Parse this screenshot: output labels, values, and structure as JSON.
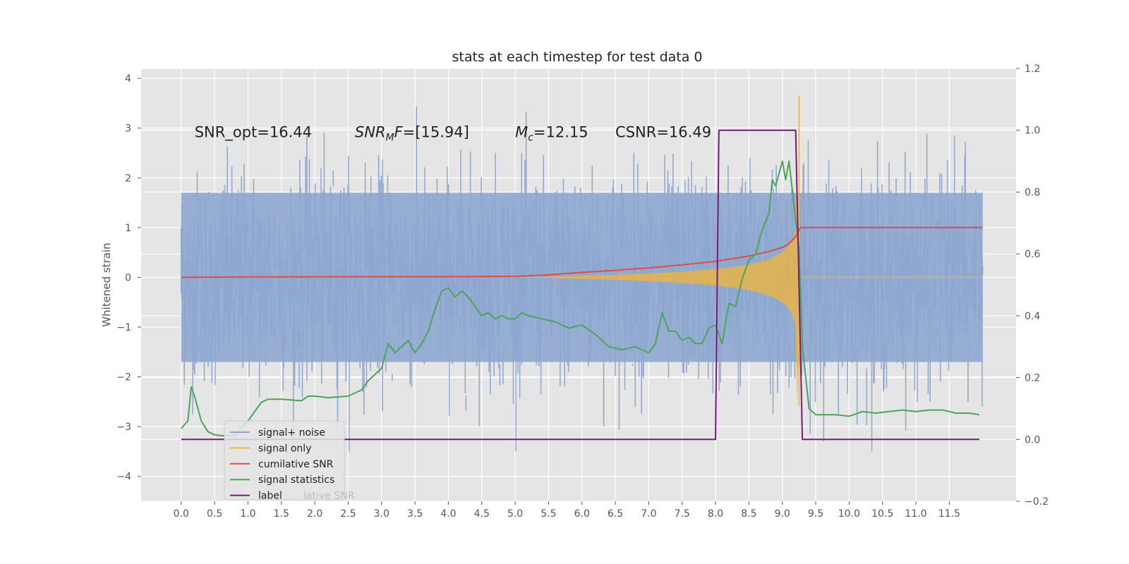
{
  "chart_data": {
    "type": "line",
    "title": "stats at each timestep for test data 0",
    "ylabel": "Whitened strain",
    "xlabel": "",
    "xlim": [
      -0.6,
      12.5
    ],
    "ylim": [
      -4.5,
      4.2
    ],
    "y2lim": [
      -0.2,
      1.2
    ],
    "grid": true,
    "legend_position": "lower-left",
    "xticks": [
      "0.0",
      "0.5",
      "1.0",
      "1.5",
      "2.0",
      "2.5",
      "3.0",
      "3.5",
      "4.0",
      "4.5",
      "5.0",
      "5.5",
      "6.0",
      "6.5",
      "7.0",
      "7.5",
      "8.0",
      "8.5",
      "9.0",
      "9.5",
      "10.0",
      "10.5",
      "11.0",
      "11.5"
    ],
    "yticks": [
      "−4",
      "−3",
      "−2",
      "−1",
      "0",
      "1",
      "2",
      "3",
      "4"
    ],
    "y2ticks": [
      "−0.2",
      "0.0",
      "0.2",
      "0.4",
      "0.6",
      "0.8",
      "1.0",
      "1.2"
    ],
    "annotations": [
      {
        "parts": [
          {
            "t": "SNR_opt=16.44",
            "i": false
          }
        ],
        "x": 0.2,
        "y": 2.92
      },
      {
        "parts": [
          {
            "t": "SNR",
            "i": true
          },
          {
            "t": "M",
            "i": true,
            "sub": true
          },
          {
            "t": "F",
            "i": true
          },
          {
            "t": "=[15.94]",
            "i": false
          }
        ],
        "x": 2.6,
        "y": 2.92
      },
      {
        "parts": [
          {
            "t": "M",
            "i": true
          },
          {
            "t": "c",
            "i": true,
            "sub": true
          },
          {
            "t": "=12.15",
            "i": false
          }
        ],
        "x": 5.0,
        "y": 2.92
      },
      {
        "parts": [
          {
            "t": "CSNR=16.49",
            "i": false
          }
        ],
        "x": 6.5,
        "y": 2.92
      }
    ],
    "series": [
      {
        "name": "signal+ noise",
        "color": "#8ea6cf",
        "axis": "left",
        "kind": "noise",
        "x_range": [
          0,
          12
        ],
        "amplitude_range": [
          -3.5,
          3.8
        ]
      },
      {
        "name": "signal only",
        "color": "#e8b44a",
        "axis": "left",
        "kind": "chirp",
        "x_range": [
          5.0,
          9.27
        ],
        "peak_x": 9.25,
        "peak_y": 3.65,
        "trough_y": -2.6
      },
      {
        "name": "cumilative SNR",
        "color": "#d94f43",
        "axis": "left",
        "x": [
          0,
          1,
          2,
          3,
          4,
          5,
          5.5,
          6,
          6.5,
          7,
          7.5,
          8,
          8.5,
          8.8,
          9.0,
          9.1,
          9.2,
          9.27,
          9.3,
          12
        ],
        "y": [
          0,
          0.01,
          0.01,
          0.015,
          0.015,
          0.02,
          0.05,
          0.1,
          0.14,
          0.19,
          0.25,
          0.32,
          0.43,
          0.52,
          0.6,
          0.68,
          0.82,
          1.0,
          1.0,
          1.0
        ]
      },
      {
        "name": "signal statistics",
        "color": "#4aa55a",
        "axis": "right",
        "x": [
          0,
          0.1,
          0.15,
          0.2,
          0.3,
          0.4,
          0.5,
          0.6,
          0.7,
          0.8,
          1.0,
          1.2,
          1.3,
          1.5,
          1.8,
          1.9,
          2.0,
          2.2,
          2.5,
          2.7,
          2.8,
          3.0,
          3.1,
          3.2,
          3.3,
          3.4,
          3.5,
          3.6,
          3.7,
          3.8,
          3.9,
          4.0,
          4.1,
          4.2,
          4.3,
          4.4,
          4.5,
          4.6,
          4.7,
          4.8,
          4.9,
          5.0,
          5.1,
          5.2,
          5.4,
          5.6,
          5.8,
          6.0,
          6.2,
          6.4,
          6.6,
          6.8,
          7.0,
          7.1,
          7.2,
          7.3,
          7.4,
          7.5,
          7.6,
          7.7,
          7.8,
          7.9,
          8.0,
          8.1,
          8.2,
          8.3,
          8.4,
          8.5,
          8.6,
          8.7,
          8.8,
          8.85,
          8.9,
          8.95,
          9.0,
          9.05,
          9.1,
          9.2,
          9.25,
          9.3,
          9.4,
          9.5,
          9.6,
          9.8,
          10.0,
          10.2,
          10.4,
          10.6,
          10.8,
          11.0,
          11.2,
          11.4,
          11.6,
          11.8,
          11.95
        ],
        "y": [
          0.035,
          0.06,
          0.17,
          0.14,
          0.06,
          0.025,
          0.015,
          0.012,
          0.012,
          0.012,
          0.06,
          0.12,
          0.13,
          0.13,
          0.125,
          0.14,
          0.14,
          0.135,
          0.14,
          0.16,
          0.19,
          0.23,
          0.31,
          0.28,
          0.3,
          0.32,
          0.28,
          0.31,
          0.35,
          0.42,
          0.48,
          0.49,
          0.46,
          0.48,
          0.46,
          0.43,
          0.4,
          0.41,
          0.39,
          0.4,
          0.39,
          0.39,
          0.41,
          0.4,
          0.39,
          0.38,
          0.36,
          0.37,
          0.34,
          0.3,
          0.29,
          0.3,
          0.28,
          0.31,
          0.41,
          0.35,
          0.35,
          0.32,
          0.33,
          0.31,
          0.31,
          0.36,
          0.37,
          0.31,
          0.44,
          0.43,
          0.52,
          0.58,
          0.6,
          0.68,
          0.73,
          0.84,
          0.82,
          0.86,
          0.9,
          0.84,
          0.9,
          0.71,
          0.62,
          0.3,
          0.1,
          0.08,
          0.08,
          0.08,
          0.075,
          0.09,
          0.085,
          0.09,
          0.095,
          0.09,
          0.095,
          0.095,
          0.085,
          0.085,
          0.08
        ]
      },
      {
        "name": "label",
        "color": "#7a1a7e",
        "axis": "right",
        "x": [
          0,
          8.0,
          8.05,
          9.2,
          9.3,
          11.95
        ],
        "y": [
          0,
          0,
          1,
          1,
          0,
          0
        ]
      }
    ]
  },
  "legend": {
    "items": [
      "signal+ noise",
      "signal only",
      "cumilative SNR",
      "signal statistics",
      "label"
    ],
    "ghost_text": "lative SNR"
  }
}
